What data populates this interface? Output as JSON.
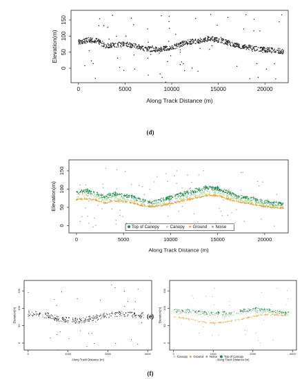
{
  "chart_data": [
    {
      "type": "scatter",
      "panel": "(d)",
      "xlabel": "Along Track Distance (m)",
      "ylabel": "Elevation(m)",
      "xticks": [
        "0",
        "5000",
        "10000",
        "15000",
        "20000"
      ],
      "yticks": [
        "0",
        "50",
        "100",
        "150"
      ],
      "xlim": [
        -800,
        22500
      ],
      "ylim": [
        -45,
        180
      ],
      "grid": false,
      "series": [
        {
          "color": "#222222",
          "x": [
            0,
            1000,
            2000,
            3000,
            4000,
            5000,
            6000,
            7000,
            8000,
            9000,
            10000,
            11000,
            12000,
            13000,
            14000,
            15000,
            16000,
            17000,
            18000,
            19000,
            20000,
            21000,
            22000
          ],
          "y": [
            82,
            88,
            85,
            70,
            72,
            75,
            70,
            62,
            58,
            60,
            63,
            75,
            82,
            85,
            92,
            88,
            80,
            70,
            66,
            62,
            58,
            55,
            52
          ]
        }
      ]
    },
    {
      "type": "scatter",
      "panel": "(e)",
      "xlabel": "Along Track Distance (m)",
      "ylabel": "Elevation(m)",
      "xticks": [
        "0",
        "5000",
        "10000",
        "15000",
        "20000"
      ],
      "yticks": [
        "0",
        "50",
        "100",
        "150"
      ],
      "xlim": [
        -800,
        22500
      ],
      "ylim": [
        -20,
        180
      ],
      "grid": false,
      "legend_position": "bottom-right",
      "series": [
        {
          "name": "Top of Canopy",
          "color": "#1e8a4a",
          "x": [
            0,
            1000,
            2000,
            3000,
            4000,
            5000,
            6000,
            7000,
            8000,
            9000,
            10000,
            11000,
            12000,
            13000,
            14000,
            15000,
            16000,
            17000,
            18000,
            19000,
            20000,
            21000,
            22000
          ],
          "y": [
            92,
            95,
            88,
            78,
            86,
            82,
            78,
            68,
            62,
            70,
            76,
            84,
            90,
            98,
            104,
            100,
            92,
            80,
            76,
            70,
            64,
            60,
            58
          ]
        },
        {
          "name": "Canopy",
          "color": "#a8dca0",
          "x": [
            0,
            1000,
            2000,
            3000,
            4000,
            5000,
            6000,
            7000,
            8000,
            9000,
            10000,
            11000,
            12000,
            13000,
            14000,
            15000,
            16000,
            17000,
            18000,
            19000,
            20000,
            21000,
            22000
          ],
          "y": [
            82,
            86,
            80,
            70,
            76,
            73,
            70,
            60,
            55,
            62,
            68,
            75,
            80,
            88,
            93,
            90,
            82,
            72,
            68,
            63,
            57,
            53,
            52
          ]
        },
        {
          "name": "Ground",
          "color": "#f0a030",
          "x": [
            0,
            1000,
            2000,
            3000,
            4000,
            5000,
            6000,
            7000,
            8000,
            9000,
            10000,
            11000,
            12000,
            13000,
            14000,
            15000,
            16000,
            17000,
            18000,
            19000,
            20000,
            21000,
            22000
          ],
          "y": [
            72,
            74,
            70,
            62,
            68,
            66,
            62,
            55,
            52,
            55,
            60,
            66,
            72,
            78,
            84,
            82,
            74,
            66,
            62,
            58,
            52,
            50,
            48
          ]
        },
        {
          "name": "Noise",
          "color": "#a0a0a0",
          "x": [
            500,
            3200,
            6100,
            8800,
            11500,
            14200,
            16900,
            19600,
            21400
          ],
          "y": [
            150,
            20,
            135,
            10,
            160,
            30,
            140,
            15,
            120
          ]
        }
      ]
    },
    {
      "type": "scatter",
      "panel": "(f)",
      "xlabel": "Along Track Distance (m)",
      "ylabel": "Elevation(m)",
      "xticks": [
        "0",
        "1000",
        "2000",
        "3000"
      ],
      "yticks": [
        "0",
        "50",
        "100",
        "150"
      ],
      "xlim": [
        -100,
        3100
      ],
      "ylim": [
        -20,
        180
      ],
      "series": [
        {
          "color": "#222222",
          "x": [
            0,
            250,
            500,
            750,
            1000,
            1250,
            1500,
            1750,
            2000,
            2250,
            2500,
            2750,
            2900
          ],
          "y": [
            84,
            82,
            80,
            70,
            66,
            64,
            68,
            74,
            80,
            84,
            82,
            80,
            80
          ]
        }
      ]
    },
    {
      "type": "scatter",
      "panel": "(f)",
      "xlabel": "Along Track Distance (m)",
      "ylabel": "Elevation(m)",
      "xticks": [
        "0",
        "1000",
        "2000",
        "3000"
      ],
      "yticks": [
        "0",
        "50",
        "100",
        "150"
      ],
      "xlim": [
        -100,
        3100
      ],
      "ylim": [
        -20,
        180
      ],
      "legend_position": "bottom",
      "series": [
        {
          "name": "Canopy",
          "color": "#b8e2b0",
          "x": [
            0,
            250,
            500,
            750,
            1000,
            1250,
            1500,
            1750,
            2000,
            2250,
            2500,
            2750,
            2900
          ],
          "y": [
            88,
            86,
            84,
            80,
            78,
            78,
            82,
            86,
            90,
            92,
            88,
            84,
            82
          ]
        },
        {
          "name": "Ground",
          "color": "#f0a030",
          "x": [
            0,
            250,
            500,
            750,
            1000,
            1250,
            1500,
            1750,
            2000,
            2250,
            2500,
            2750,
            2900
          ],
          "y": [
            76,
            72,
            66,
            60,
            58,
            60,
            64,
            70,
            76,
            82,
            82,
            80,
            80
          ]
        },
        {
          "name": "Noise",
          "color": "#a0a0a0",
          "x": [
            150,
            600,
            1100,
            1700,
            2300,
            2800
          ],
          "y": [
            130,
            15,
            145,
            20,
            150,
            140
          ]
        },
        {
          "name": "Top of Canopy",
          "color": "#1e8a4a",
          "x": [
            0,
            250,
            500,
            750,
            1000,
            1250,
            1500,
            1750,
            2000,
            2250,
            2500,
            2750,
            2900
          ],
          "y": [
            94,
            92,
            90,
            86,
            84,
            84,
            88,
            92,
            96,
            96,
            92,
            86,
            84
          ]
        }
      ]
    }
  ]
}
